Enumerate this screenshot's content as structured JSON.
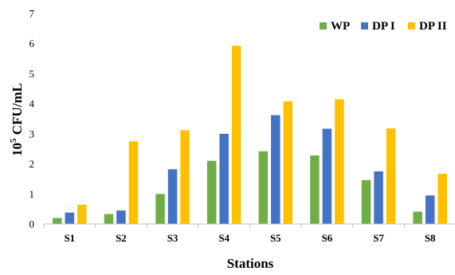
{
  "chart_data": {
    "type": "bar",
    "title": "",
    "xlabel": "Stations",
    "ylabel_base": "10",
    "ylabel_exp": "5",
    "ylabel_rest": " CFU/mL",
    "ylim": [
      0,
      7
    ],
    "yticks": [
      "0",
      "1",
      "2",
      "3",
      "4",
      "5",
      "6",
      "7"
    ],
    "categories": [
      "S1",
      "S2",
      "S3",
      "S4",
      "S5",
      "S6",
      "S7",
      "S8"
    ],
    "series": [
      {
        "name": "WP",
        "color": "#70ad47",
        "values": [
          0.2,
          0.33,
          1.0,
          2.1,
          2.42,
          2.28,
          1.46,
          0.41
        ]
      },
      {
        "name": "DP I",
        "color": "#4472c4",
        "values": [
          0.38,
          0.45,
          1.82,
          3.0,
          3.62,
          3.17,
          1.75,
          0.95
        ]
      },
      {
        "name": "DP II",
        "color": "#ffc000",
        "values": [
          0.64,
          2.75,
          3.12,
          5.93,
          4.08,
          4.15,
          3.18,
          1.67
        ]
      }
    ],
    "legend_position": "top-right",
    "grid": false
  }
}
